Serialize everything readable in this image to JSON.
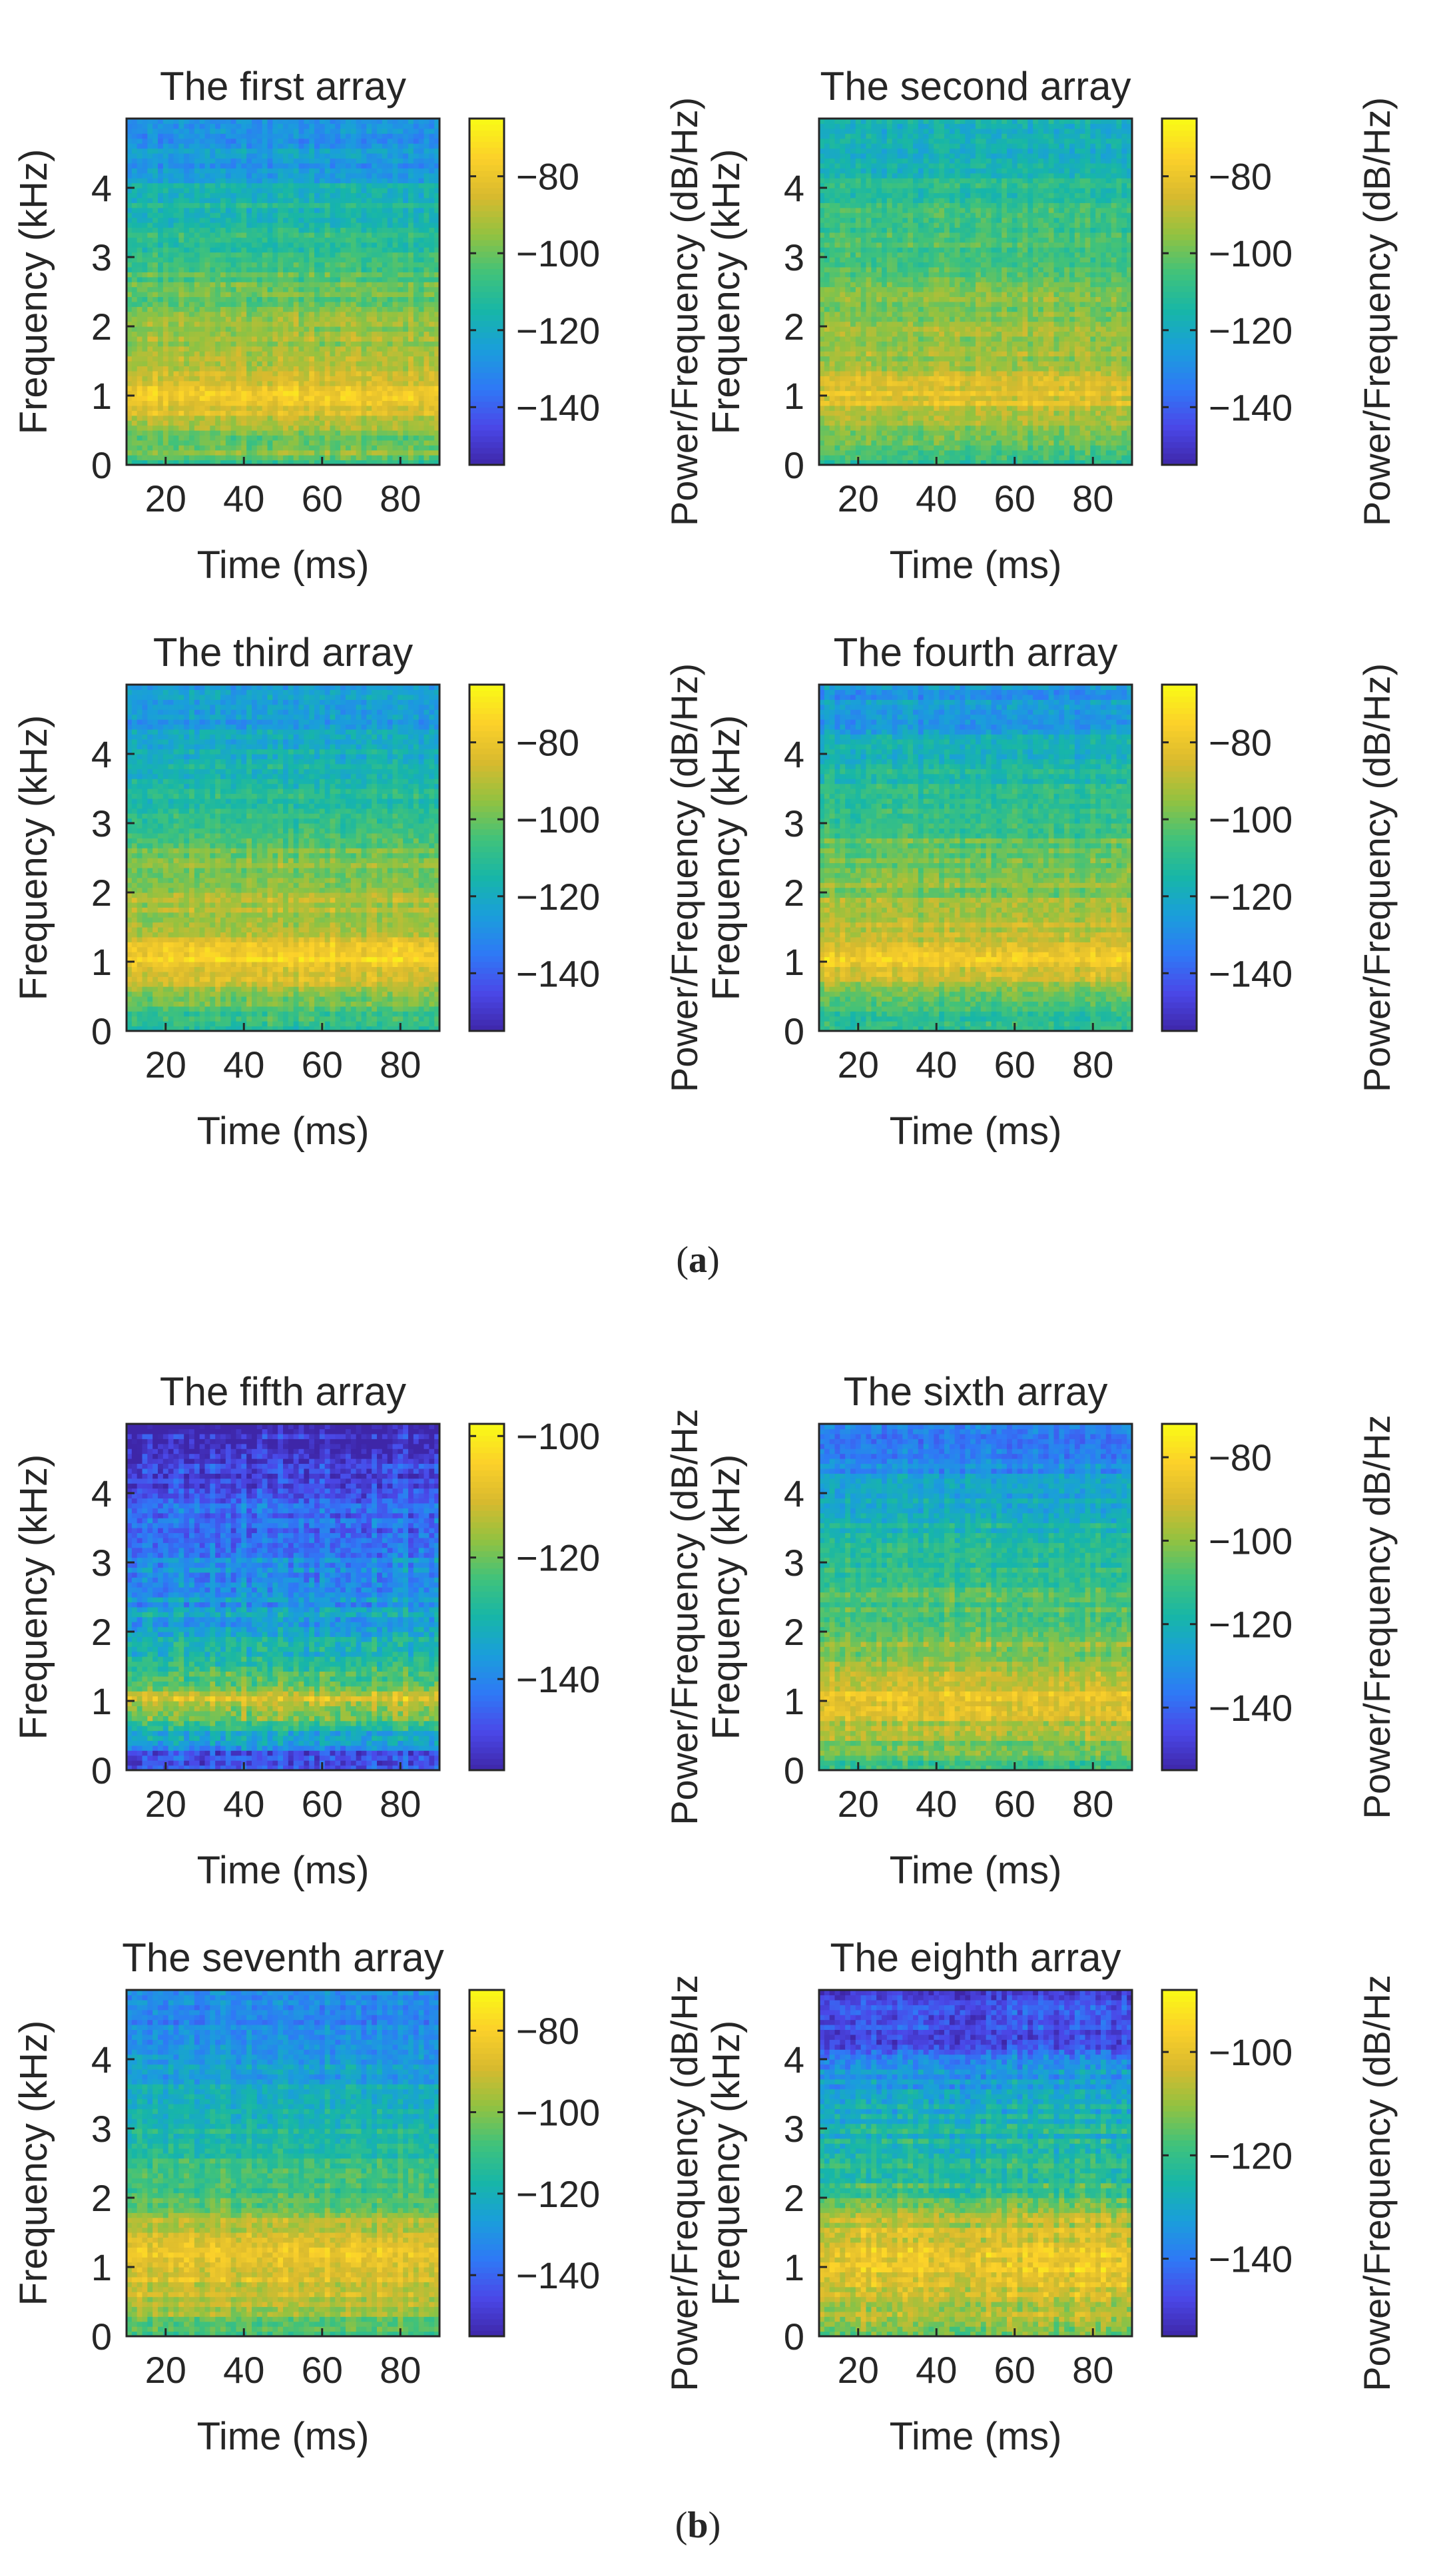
{
  "panel_labels": {
    "a": "a",
    "b": "b"
  },
  "colormap": [
    "#3e26a8",
    "#4a48e8",
    "#2f79f6",
    "#1a9edb",
    "#17b6a8",
    "#41c27a",
    "#93c240",
    "#d9ba2e",
    "#fcd12a",
    "#f9fb15"
  ],
  "chart_data": [
    {
      "type": "heatmap",
      "title": "The first array",
      "xlabel": "Time (ms)",
      "ylabel": "Frequency  (kHz)",
      "colorbar_label": "Power/Frequency (dB/Hz)",
      "xlim": [
        10,
        90
      ],
      "ylim": [
        0,
        5
      ],
      "xticks": [
        20,
        40,
        60,
        80
      ],
      "yticks": [
        0,
        1,
        2,
        3,
        4
      ],
      "clim": [
        -155,
        -65
      ],
      "cticks": [
        -80,
        -100,
        -120,
        -140
      ],
      "cticklabels": [
        "−80",
        "−100",
        "−120",
        "−140"
      ],
      "seed": 11,
      "profile": [
        [
          0,
          -112
        ],
        [
          0.1,
          -98
        ],
        [
          0.4,
          -100
        ],
        [
          0.7,
          -86
        ],
        [
          0.9,
          -80
        ],
        [
          1.05,
          -74
        ],
        [
          1.2,
          -84
        ],
        [
          1.5,
          -90
        ],
        [
          2.0,
          -96
        ],
        [
          2.5,
          -100
        ],
        [
          3.0,
          -108
        ],
        [
          3.5,
          -112
        ],
        [
          4.0,
          -115
        ],
        [
          4.15,
          -125
        ],
        [
          5.0,
          -128
        ]
      ]
    },
    {
      "type": "heatmap",
      "title": "The second array",
      "xlabel": "Time (ms)",
      "ylabel": "Frequency  (kHz)",
      "colorbar_label": "Power/Frequency (dB/Hz)",
      "xlim": [
        10,
        90
      ],
      "ylim": [
        0,
        5
      ],
      "xticks": [
        20,
        40,
        60,
        80
      ],
      "yticks": [
        0,
        1,
        2,
        3,
        4
      ],
      "clim": [
        -155,
        -65
      ],
      "cticks": [
        -80,
        -100,
        -120,
        -140
      ],
      "cticklabels": [
        "−80",
        "−100",
        "−120",
        "−140"
      ],
      "seed": 23,
      "profile": [
        [
          0,
          -108
        ],
        [
          0.5,
          -96
        ],
        [
          0.9,
          -84
        ],
        [
          1.1,
          -82
        ],
        [
          1.4,
          -92
        ],
        [
          2.0,
          -94
        ],
        [
          2.5,
          -98
        ],
        [
          3.0,
          -104
        ],
        [
          3.5,
          -108
        ],
        [
          4.0,
          -112
        ],
        [
          4.5,
          -116
        ],
        [
          5.0,
          -118
        ]
      ]
    },
    {
      "type": "heatmap",
      "title": "The third array",
      "xlabel": "Time (ms)",
      "ylabel": "Frequency  (kHz)",
      "colorbar_label": "Power/Frequency (dB/Hz)",
      "xlim": [
        10,
        90
      ],
      "ylim": [
        0,
        5
      ],
      "xticks": [
        20,
        40,
        60,
        80
      ],
      "yticks": [
        0,
        1,
        2,
        3,
        4
      ],
      "clim": [
        -155,
        -65
      ],
      "cticks": [
        -80,
        -100,
        -120,
        -140
      ],
      "cticklabels": [
        "−80",
        "−100",
        "−120",
        "−140"
      ],
      "seed": 37,
      "profile": [
        [
          0,
          -110
        ],
        [
          0.5,
          -100
        ],
        [
          0.8,
          -84
        ],
        [
          1.1,
          -76
        ],
        [
          1.4,
          -88
        ],
        [
          2.0,
          -94
        ],
        [
          2.5,
          -98
        ],
        [
          3.0,
          -106
        ],
        [
          3.5,
          -112
        ],
        [
          4.0,
          -118
        ],
        [
          4.5,
          -124
        ],
        [
          5.0,
          -126
        ]
      ]
    },
    {
      "type": "heatmap",
      "title": "The fourth array",
      "xlabel": "Time (ms)",
      "ylabel": "Frequency  (kHz)",
      "colorbar_label": "Power/Frequency (dB/Hz)",
      "xlim": [
        10,
        90
      ],
      "ylim": [
        0,
        5
      ],
      "xticks": [
        20,
        40,
        60,
        80
      ],
      "yticks": [
        0,
        1,
        2,
        3,
        4
      ],
      "clim": [
        -155,
        -65
      ],
      "cticks": [
        -80,
        -100,
        -120,
        -140
      ],
      "cticklabels": [
        "−80",
        "−100",
        "−120",
        "−140"
      ],
      "seed": 41,
      "profile": [
        [
          0,
          -112
        ],
        [
          0.5,
          -102
        ],
        [
          0.8,
          -86
        ],
        [
          1.05,
          -78
        ],
        [
          1.3,
          -88
        ],
        [
          2.0,
          -96
        ],
        [
          2.5,
          -100
        ],
        [
          3.0,
          -106
        ],
        [
          3.5,
          -110
        ],
        [
          4.0,
          -118
        ],
        [
          4.5,
          -126
        ],
        [
          5.0,
          -128
        ]
      ]
    },
    {
      "type": "heatmap",
      "title": "The fifth array",
      "xlabel": "Time (ms)",
      "ylabel": "Frequency (kHz)",
      "colorbar_label": "Power/Frequency (dB/Hz",
      "xlim": [
        10,
        90
      ],
      "ylim": [
        0,
        5
      ],
      "xticks": [
        20,
        40,
        60,
        80
      ],
      "yticks": [
        0,
        1,
        2,
        3,
        4
      ],
      "clim": [
        -155,
        -98
      ],
      "cticks": [
        -100,
        -120,
        -140
      ],
      "cticklabels": [
        "−100",
        "−120",
        "−140"
      ],
      "seed": 53,
      "profile": [
        [
          0,
          -145
        ],
        [
          0.25,
          -146
        ],
        [
          0.4,
          -135
        ],
        [
          0.8,
          -120
        ],
        [
          1.05,
          -108
        ],
        [
          1.3,
          -122
        ],
        [
          1.8,
          -132
        ],
        [
          2.5,
          -136
        ],
        [
          3.0,
          -138
        ],
        [
          3.5,
          -142
        ],
        [
          3.9,
          -146
        ],
        [
          4.2,
          -150
        ],
        [
          5.0,
          -152
        ]
      ]
    },
    {
      "type": "heatmap",
      "title": "The sixth array",
      "xlabel": "Time (ms)",
      "ylabel": "Frequency (kHz)",
      "colorbar_label": "Power/Frequency dB/Hz",
      "xlim": [
        10,
        90
      ],
      "ylim": [
        0,
        5
      ],
      "xticks": [
        20,
        40,
        60,
        80
      ],
      "yticks": [
        0,
        1,
        2,
        3,
        4
      ],
      "clim": [
        -155,
        -72
      ],
      "cticks": [
        -80,
        -100,
        -120,
        -140
      ],
      "cticklabels": [
        "−80",
        "−100",
        "−120",
        "−140"
      ],
      "seed": 67,
      "profile": [
        [
          0,
          -112
        ],
        [
          0.4,
          -100
        ],
        [
          0.8,
          -90
        ],
        [
          1.1,
          -86
        ],
        [
          1.5,
          -96
        ],
        [
          2.0,
          -104
        ],
        [
          2.5,
          -108
        ],
        [
          3.0,
          -112
        ],
        [
          3.5,
          -118
        ],
        [
          4.0,
          -124
        ],
        [
          4.5,
          -132
        ],
        [
          5.0,
          -136
        ]
      ]
    },
    {
      "type": "heatmap",
      "title": "The seventh array",
      "xlabel": "Time (ms)",
      "ylabel": "Frequency  (kHz)",
      "colorbar_label": "Power/Frequency (dB/Hz",
      "xlim": [
        10,
        90
      ],
      "ylim": [
        0,
        5
      ],
      "xticks": [
        20,
        40,
        60,
        80
      ],
      "yticks": [
        0,
        1,
        2,
        3,
        4
      ],
      "clim": [
        -155,
        -70
      ],
      "cticks": [
        -80,
        -100,
        -120,
        -140
      ],
      "cticklabels": [
        "−80",
        "−100",
        "−120",
        "−140"
      ],
      "seed": 79,
      "profile": [
        [
          0,
          -108
        ],
        [
          0.4,
          -96
        ],
        [
          0.9,
          -86
        ],
        [
          1.2,
          -84
        ],
        [
          1.6,
          -92
        ],
        [
          2.0,
          -108
        ],
        [
          2.5,
          -112
        ],
        [
          3.0,
          -116
        ],
        [
          3.5,
          -122
        ],
        [
          4.0,
          -128
        ],
        [
          4.5,
          -132
        ],
        [
          5.0,
          -134
        ]
      ]
    },
    {
      "type": "heatmap",
      "title": "The eighth array",
      "xlabel": "Time (ms)",
      "ylabel": "Frequency  (kHz)",
      "colorbar_label": "Power/Frequency (dB/Hz",
      "xlim": [
        10,
        90
      ],
      "ylim": [
        0,
        5
      ],
      "xticks": [
        20,
        40,
        60,
        80
      ],
      "yticks": [
        0,
        1,
        2,
        3,
        4
      ],
      "clim": [
        -155,
        -88
      ],
      "cticks": [
        -100,
        -120,
        -140
      ],
      "cticklabels": [
        "−100",
        "−120",
        "−140"
      ],
      "seed": 97,
      "profile": [
        [
          0,
          -118
        ],
        [
          0.3,
          -108
        ],
        [
          0.8,
          -100
        ],
        [
          1.1,
          -96
        ],
        [
          1.6,
          -104
        ],
        [
          2.0,
          -118
        ],
        [
          2.5,
          -122
        ],
        [
          3.0,
          -126
        ],
        [
          3.5,
          -130
        ],
        [
          4.0,
          -134
        ],
        [
          4.2,
          -146
        ],
        [
          5.0,
          -148
        ]
      ]
    }
  ]
}
